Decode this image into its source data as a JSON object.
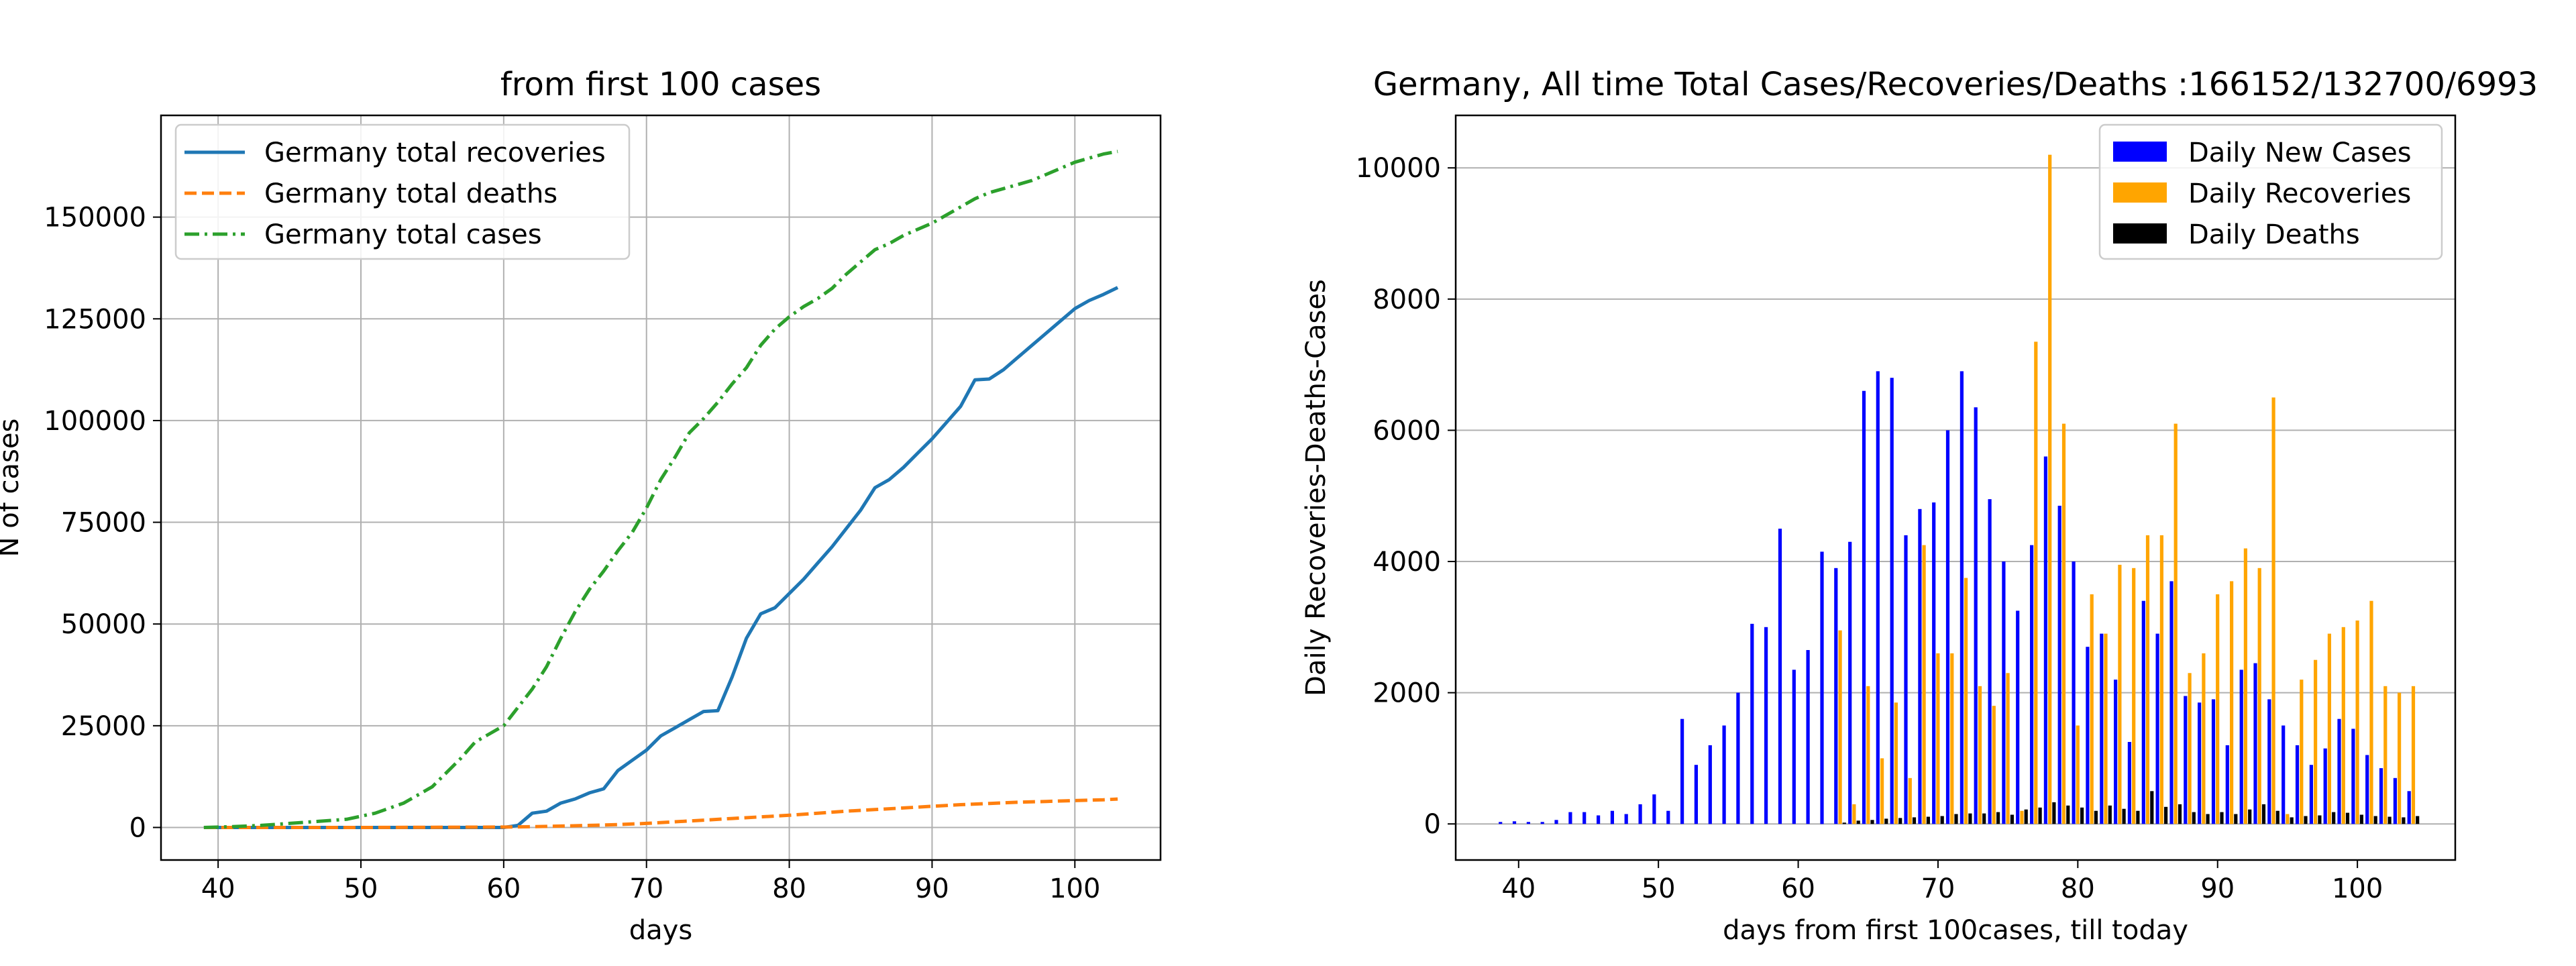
{
  "chart_data": [
    {
      "type": "line",
      "title": "from first 100  cases",
      "xlabel": "days",
      "ylabel": "N of cases",
      "xlim": [
        36,
        106
      ],
      "ylim": [
        -8000,
        175000
      ],
      "xticks": [
        40,
        50,
        60,
        70,
        80,
        90,
        100
      ],
      "yticks": [
        0,
        25000,
        50000,
        75000,
        100000,
        125000,
        150000
      ],
      "grid": true,
      "legend_position": "upper-left",
      "series": [
        {
          "name": "Germany total recoveries",
          "color": "#1f77b4",
          "style": "solid",
          "x": [
            39,
            45,
            50,
            55,
            60,
            61,
            62,
            63,
            64,
            65,
            66,
            67,
            68,
            69,
            70,
            71,
            72,
            73,
            74,
            75,
            76,
            77,
            78,
            79,
            80,
            81,
            82,
            83,
            84,
            85,
            86,
            87,
            88,
            89,
            90,
            91,
            92,
            93,
            94,
            95,
            96,
            97,
            98,
            99,
            100,
            101,
            102,
            103
          ],
          "y": [
            0,
            0,
            0,
            0,
            0,
            500,
            3500,
            4000,
            6000,
            7000,
            8500,
            9500,
            14000,
            16500,
            19000,
            22500,
            24500,
            26500,
            28500,
            28700,
            37000,
            46500,
            52500,
            54000,
            57500,
            61000,
            65000,
            69000,
            73500,
            78000,
            83500,
            85500,
            88500,
            92000,
            95500,
            99500,
            103500,
            110000,
            110200,
            112500,
            115500,
            118500,
            121500,
            124500,
            127500,
            129500,
            131000,
            132700
          ]
        },
        {
          "name": "Germany total deaths",
          "color": "#ff7f0e",
          "style": "dashed",
          "x": [
            39,
            50,
            60,
            62,
            64,
            66,
            68,
            70,
            72,
            74,
            76,
            78,
            80,
            82,
            84,
            86,
            88,
            90,
            92,
            94,
            96,
            98,
            100,
            102,
            103
          ],
          "y": [
            0,
            0,
            100,
            200,
            350,
            500,
            700,
            1000,
            1400,
            1800,
            2200,
            2600,
            3000,
            3500,
            4000,
            4400,
            4800,
            5200,
            5600,
            5900,
            6200,
            6400,
            6600,
            6800,
            6993
          ]
        },
        {
          "name": "Germany total cases",
          "color": "#2ca02c",
          "style": "dashdot",
          "x": [
            39,
            41,
            43,
            45,
            47,
            49,
            51,
            53,
            55,
            57,
            58,
            59,
            60,
            61,
            62,
            63,
            64,
            65,
            66,
            67,
            68,
            69,
            70,
            71,
            72,
            73,
            74,
            75,
            76,
            77,
            78,
            79,
            80,
            81,
            82,
            83,
            84,
            85,
            86,
            87,
            88,
            89,
            90,
            91,
            92,
            93,
            94,
            95,
            96,
            97,
            98,
            99,
            100,
            101,
            102,
            103
          ],
          "y": [
            0,
            200,
            500,
            1000,
            1500,
            2000,
            3500,
            6000,
            10000,
            17000,
            21000,
            23000,
            25000,
            29500,
            34000,
            39500,
            46500,
            53000,
            58500,
            63000,
            68000,
            72500,
            78500,
            85500,
            91000,
            97000,
            100500,
            104500,
            109000,
            113000,
            118500,
            122500,
            125500,
            128000,
            130000,
            132500,
            136000,
            139000,
            142000,
            143500,
            145500,
            147000,
            148500,
            150500,
            152500,
            154500,
            156000,
            157000,
            158000,
            159000,
            160500,
            162000,
            163500,
            164500,
            165500,
            166152
          ]
        }
      ]
    },
    {
      "type": "bar",
      "title": "Germany, All time Total Cases/Recoveries/Deaths :166152/132700/6993",
      "xlabel": "days from first 100cases, till today",
      "ylabel": "Daily Recoveries-Deaths-Cases",
      "xlim": [
        35.5,
        107
      ],
      "ylim": [
        -550,
        10800
      ],
      "xticks": [
        40,
        50,
        60,
        70,
        80,
        90,
        100
      ],
      "yticks": [
        0,
        2000,
        4000,
        6000,
        8000,
        10000
      ],
      "grid": "horizontal",
      "legend_position": "upper-right",
      "x": [
        39,
        40,
        41,
        42,
        43,
        44,
        45,
        46,
        47,
        48,
        49,
        50,
        51,
        52,
        53,
        54,
        55,
        56,
        57,
        58,
        59,
        60,
        61,
        62,
        63,
        64,
        65,
        66,
        67,
        68,
        69,
        70,
        71,
        72,
        73,
        74,
        75,
        76,
        77,
        78,
        79,
        80,
        81,
        82,
        83,
        84,
        85,
        86,
        87,
        88,
        89,
        90,
        91,
        92,
        93,
        94,
        95,
        96,
        97,
        98,
        99,
        100,
        101,
        102,
        103,
        104
      ],
      "series": [
        {
          "name": "Daily New Cases",
          "color": "#0000ff",
          "values": [
            30,
            40,
            30,
            30,
            60,
            180,
            180,
            130,
            200,
            150,
            300,
            450,
            200,
            1600,
            900,
            1200,
            1500,
            2000,
            3050,
            3000,
            4500,
            2350,
            2650,
            4150,
            3900,
            4300,
            6600,
            6900,
            6800,
            4400,
            4800,
            4900,
            6000,
            6900,
            6350,
            4950,
            4000,
            3250,
            4250,
            5600,
            4850,
            4000,
            2700,
            2900,
            2200,
            1250,
            3400,
            2900,
            3700,
            1950,
            1850,
            1900,
            1200,
            2350,
            2450,
            1900,
            1500,
            1200,
            900,
            1150,
            1600,
            1450,
            1050,
            850,
            700,
            500
          ]
        },
        {
          "name": "Daily Recoveries",
          "color": "#ffa500",
          "values": [
            0,
            0,
            0,
            0,
            0,
            0,
            0,
            0,
            0,
            0,
            0,
            0,
            0,
            0,
            0,
            0,
            0,
            0,
            0,
            0,
            0,
            0,
            0,
            0,
            2950,
            300,
            2100,
            1000,
            1850,
            700,
            4250,
            2600,
            2600,
            3750,
            2100,
            1800,
            2300,
            200,
            7350,
            10200,
            6100,
            1500,
            3500,
            2900,
            3950,
            3900,
            4400,
            4400,
            6100,
            2300,
            2600,
            3500,
            3700,
            4200,
            3900,
            6500,
            150,
            2200,
            2500,
            2900,
            3000,
            3100,
            3400,
            2100,
            2000,
            2100
          ]
        },
        {
          "name": "Daily Deaths",
          "color": "#000000",
          "values": [
            0,
            0,
            0,
            0,
            0,
            0,
            0,
            0,
            0,
            0,
            0,
            0,
            0,
            0,
            0,
            0,
            0,
            0,
            0,
            0,
            0,
            0,
            0,
            0,
            20,
            50,
            60,
            80,
            90,
            100,
            110,
            120,
            150,
            160,
            160,
            180,
            140,
            220,
            250,
            330,
            280,
            250,
            200,
            280,
            230,
            200,
            500,
            260,
            300,
            180,
            150,
            180,
            150,
            220,
            300,
            200,
            100,
            120,
            130,
            180,
            170,
            140,
            120,
            110,
            100,
            120
          ]
        }
      ]
    }
  ]
}
